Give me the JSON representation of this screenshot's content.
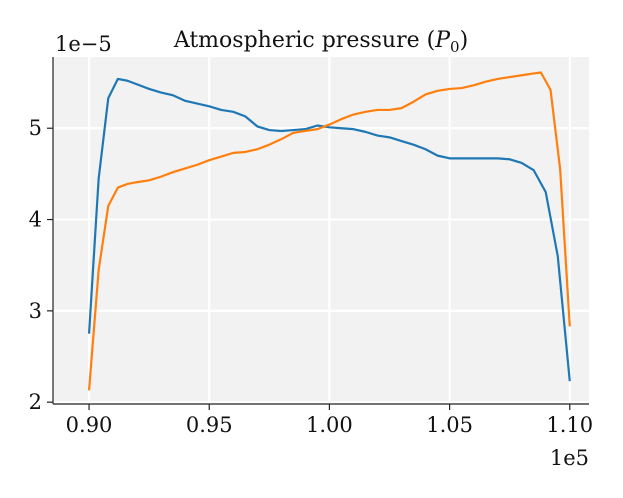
{
  "chart_data": {
    "type": "line",
    "title": "Atmospheric pressure (P₀)",
    "title_parts": {
      "main": "Atmospheric pressure (",
      "var": "P",
      "sub": "0",
      "close": ")"
    },
    "xlabel": "",
    "ylabel": "",
    "x_offset_label": "1e5",
    "y_offset_label": "1e−5",
    "xlim": [
      0.885,
      1.108
    ],
    "ylim": [
      1.98,
      5.78
    ],
    "xticks": [
      0.9,
      0.95,
      1.0,
      1.05,
      1.1
    ],
    "xtick_labels": [
      "0.90",
      "0.95",
      "1.00",
      "1.05",
      "1.10"
    ],
    "yticks": [
      2,
      3,
      4,
      5
    ],
    "ytick_labels": [
      "2",
      "3",
      "4",
      "5"
    ],
    "grid": true,
    "background": "#f2f2f2",
    "series": [
      {
        "color": "#1f77b4",
        "x": [
          0.9,
          0.904,
          0.908,
          0.912,
          0.916,
          0.92,
          0.925,
          0.93,
          0.935,
          0.94,
          0.945,
          0.95,
          0.955,
          0.96,
          0.965,
          0.97,
          0.975,
          0.98,
          0.985,
          0.99,
          0.995,
          1.0,
          1.005,
          1.01,
          1.015,
          1.02,
          1.025,
          1.03,
          1.035,
          1.04,
          1.045,
          1.05,
          1.055,
          1.06,
          1.065,
          1.07,
          1.075,
          1.08,
          1.085,
          1.09,
          1.095,
          1.1
        ],
        "values": [
          2.75,
          4.45,
          5.33,
          5.54,
          5.52,
          5.48,
          5.43,
          5.39,
          5.36,
          5.3,
          5.27,
          5.24,
          5.2,
          5.18,
          5.13,
          5.02,
          4.98,
          4.97,
          4.98,
          4.99,
          5.03,
          5.01,
          5.0,
          4.99,
          4.96,
          4.92,
          4.9,
          4.86,
          4.82,
          4.77,
          4.7,
          4.67,
          4.67,
          4.67,
          4.67,
          4.67,
          4.66,
          4.62,
          4.54,
          4.3,
          3.6,
          2.23
        ]
      },
      {
        "color": "#ff7f0e",
        "x": [
          0.9,
          0.904,
          0.908,
          0.912,
          0.916,
          0.92,
          0.925,
          0.93,
          0.935,
          0.94,
          0.945,
          0.95,
          0.955,
          0.96,
          0.965,
          0.97,
          0.975,
          0.98,
          0.985,
          0.99,
          0.995,
          1.0,
          1.005,
          1.01,
          1.015,
          1.02,
          1.025,
          1.03,
          1.035,
          1.04,
          1.045,
          1.05,
          1.055,
          1.06,
          1.065,
          1.07,
          1.075,
          1.08,
          1.085,
          1.088,
          1.092,
          1.096,
          1.1
        ],
        "values": [
          2.13,
          3.45,
          4.15,
          4.35,
          4.39,
          4.41,
          4.43,
          4.47,
          4.52,
          4.56,
          4.6,
          4.65,
          4.69,
          4.73,
          4.74,
          4.77,
          4.82,
          4.88,
          4.95,
          4.97,
          4.99,
          5.04,
          5.1,
          5.15,
          5.18,
          5.2,
          5.2,
          5.22,
          5.29,
          5.37,
          5.41,
          5.43,
          5.44,
          5.47,
          5.51,
          5.54,
          5.56,
          5.58,
          5.6,
          5.61,
          5.42,
          4.55,
          2.83
        ]
      }
    ]
  }
}
